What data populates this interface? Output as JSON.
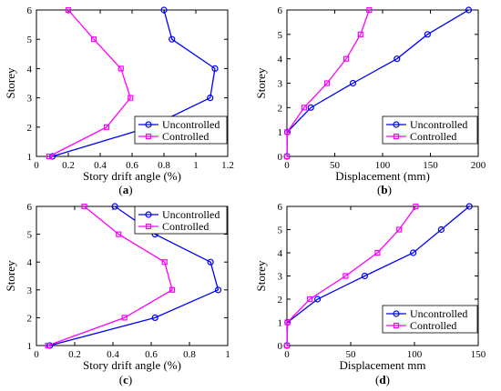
{
  "colors": {
    "uncontrolled": "#0000ff",
    "controlled": "#ff00ff"
  },
  "chart_data": [
    {
      "id": "a",
      "type": "line",
      "panel_label": "(a)",
      "xlabel": "Story drift angle (%)",
      "ylabel": "Storey",
      "xlim": [
        0,
        1.2
      ],
      "ylim": [
        1,
        6
      ],
      "xticks": [
        0,
        0.2,
        0.4,
        0.6,
        0.8,
        1,
        1.2
      ],
      "xtick_labels": [
        "0",
        "0.2",
        "0.4",
        "0.6",
        "0.8",
        "1",
        "1.2"
      ],
      "yticks": [
        1,
        2,
        3,
        4,
        5,
        6
      ],
      "ytick_labels": [
        "1",
        "2",
        "3",
        "4",
        "5",
        "6"
      ],
      "legend": {
        "position": "bottom-right"
      },
      "series": [
        {
          "name": "Uncontrolled",
          "marker": "circle",
          "color": "#0000ff",
          "x": [
            0.1,
            0.71,
            1.09,
            1.12,
            0.85,
            0.8
          ],
          "y": [
            1,
            2,
            3,
            4,
            5,
            6
          ]
        },
        {
          "name": "Controlled",
          "marker": "square",
          "color": "#ff00ff",
          "x": [
            0.08,
            0.44,
            0.59,
            0.53,
            0.36,
            0.2
          ],
          "y": [
            1,
            2,
            3,
            4,
            5,
            6
          ]
        }
      ]
    },
    {
      "id": "b",
      "type": "line",
      "panel_label": "(b)",
      "xlabel": "Displacement",
      "xlabel_unit": "(mm)",
      "ylabel": "Storey",
      "xlim": [
        0,
        200
      ],
      "ylim": [
        0,
        6
      ],
      "xticks": [
        0,
        50,
        100,
        150,
        200
      ],
      "xtick_labels": [
        "0",
        "50",
        "100",
        "150",
        "200"
      ],
      "yticks": [
        0,
        1,
        2,
        3,
        4,
        5,
        6
      ],
      "ytick_labels": [
        "0",
        "1",
        "2",
        "3",
        "4",
        "5",
        "6"
      ],
      "legend": {
        "position": "bottom-right"
      },
      "series": [
        {
          "name": "Uncontrolled",
          "marker": "circle",
          "color": "#0000ff",
          "x": [
            0,
            0.5,
            25,
            69,
            115,
            147,
            190
          ],
          "y": [
            0,
            1,
            2,
            3,
            4,
            5,
            6
          ]
        },
        {
          "name": "Controlled",
          "marker": "square",
          "color": "#ff00ff",
          "x": [
            0,
            0.4,
            18,
            42,
            62,
            77,
            86
          ],
          "y": [
            0,
            1,
            2,
            3,
            4,
            5,
            6
          ]
        }
      ]
    },
    {
      "id": "c",
      "type": "line",
      "panel_label": "(c)",
      "xlabel": "Story drift angle",
      "xlabel_unit": "(%)",
      "ylabel": "Storey",
      "xlim": [
        0,
        1
      ],
      "ylim": [
        1,
        6
      ],
      "xticks": [
        0,
        0.2,
        0.4,
        0.6,
        0.8,
        1
      ],
      "xtick_labels": [
        "0",
        "0.2",
        "0.4",
        "0.6",
        "0.8",
        "1"
      ],
      "yticks": [
        1,
        2,
        3,
        4,
        5,
        6
      ],
      "ytick_labels": [
        "1",
        "2",
        "3",
        "4",
        "5",
        "6"
      ],
      "legend": {
        "position": "top-right"
      },
      "series": [
        {
          "name": "Uncontrolled",
          "marker": "circle",
          "color": "#0000ff",
          "x": [
            0.07,
            0.62,
            0.95,
            0.91,
            0.62,
            0.41
          ],
          "y": [
            1,
            2,
            3,
            4,
            5,
            6
          ]
        },
        {
          "name": "Controlled",
          "marker": "square",
          "color": "#ff00ff",
          "x": [
            0.06,
            0.46,
            0.71,
            0.67,
            0.43,
            0.25
          ],
          "y": [
            1,
            2,
            3,
            4,
            5,
            6
          ]
        }
      ]
    },
    {
      "id": "d",
      "type": "line",
      "panel_label": "(d)",
      "xlabel": "Displacement",
      "xlabel_unit": "mm",
      "ylabel": "Storey",
      "xlim": [
        0,
        150
      ],
      "ylim": [
        0,
        6
      ],
      "xticks": [
        0,
        50,
        100,
        150
      ],
      "xtick_labels": [
        "0",
        "50",
        "100",
        "150"
      ],
      "yticks": [
        0,
        1,
        2,
        3,
        4,
        5,
        6
      ],
      "ytick_labels": [
        "0",
        "1",
        "2",
        "3",
        "4",
        "5",
        "6"
      ],
      "legend": {
        "position": "bottom-right"
      },
      "series": [
        {
          "name": "Uncontrolled",
          "marker": "circle",
          "color": "#0000ff",
          "x": [
            0,
            0.5,
            24,
            61,
            99,
            121,
            143
          ],
          "y": [
            0,
            1,
            2,
            3,
            4,
            5,
            6
          ]
        },
        {
          "name": "Controlled",
          "marker": "square",
          "color": "#ff00ff",
          "x": [
            0,
            0.4,
            18,
            46,
            71,
            88,
            101
          ],
          "y": [
            0,
            1,
            2,
            3,
            4,
            5,
            6
          ]
        }
      ]
    }
  ]
}
